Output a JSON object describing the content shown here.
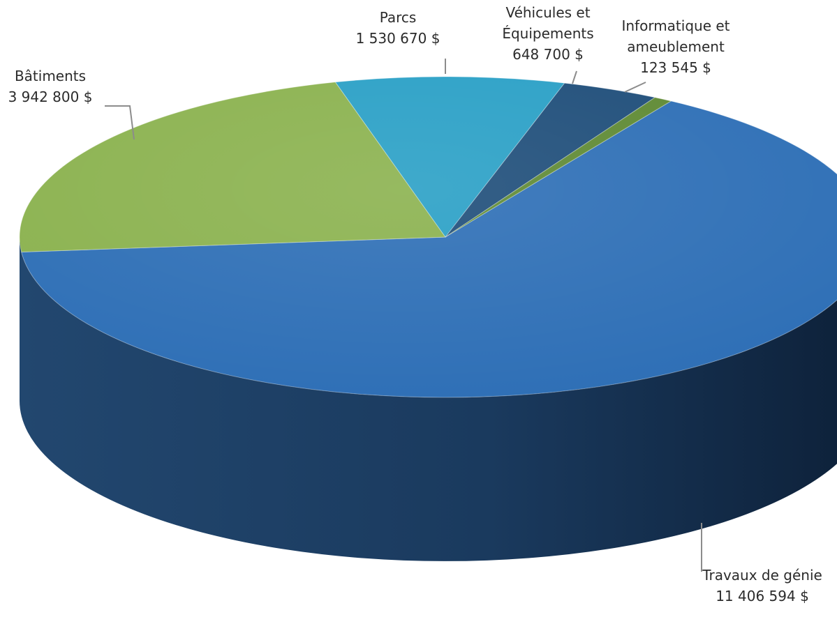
{
  "chart_data": {
    "type": "pie",
    "style": "3d",
    "unit": "$",
    "slices": [
      {
        "label": "Travaux de génie",
        "value": 11406594,
        "value_text": "11 406 594  $",
        "color": "#2e6fb6",
        "side_color": "#1b3f6b"
      },
      {
        "label": "Bâtiments",
        "value": 3942800,
        "value_text": "3 942 800  $",
        "color": "#8bb24f",
        "side_color": "#587a2c"
      },
      {
        "label": "Parcs",
        "value": 1530670,
        "value_text": "1 530 670  $",
        "color": "#2aa0c6",
        "side_color": "#1b6f8c"
      },
      {
        "label": "Véhicules et Équipements",
        "value": 648700,
        "value_text": "648 700  $",
        "color": "#1f4e7a",
        "side_color": "#15324f"
      },
      {
        "label": "Informatique et ameublement",
        "value": 123545,
        "value_text": "123 545  $",
        "color": "#5f8a34",
        "side_color": "#3f5c22"
      }
    ],
    "labels": [
      {
        "lines": [
          "Travaux de génie",
          "11 406 594  $"
        ]
      },
      {
        "lines": [
          "Bâtiments",
          "3 942 800  $"
        ]
      },
      {
        "lines": [
          "Parcs",
          "1 530 670  $"
        ]
      },
      {
        "lines": [
          "Véhicules et",
          "Équipements",
          "648 700  $"
        ]
      },
      {
        "lines": [
          "Informatique et",
          "ameublement",
          "123 545  $"
        ]
      }
    ]
  }
}
